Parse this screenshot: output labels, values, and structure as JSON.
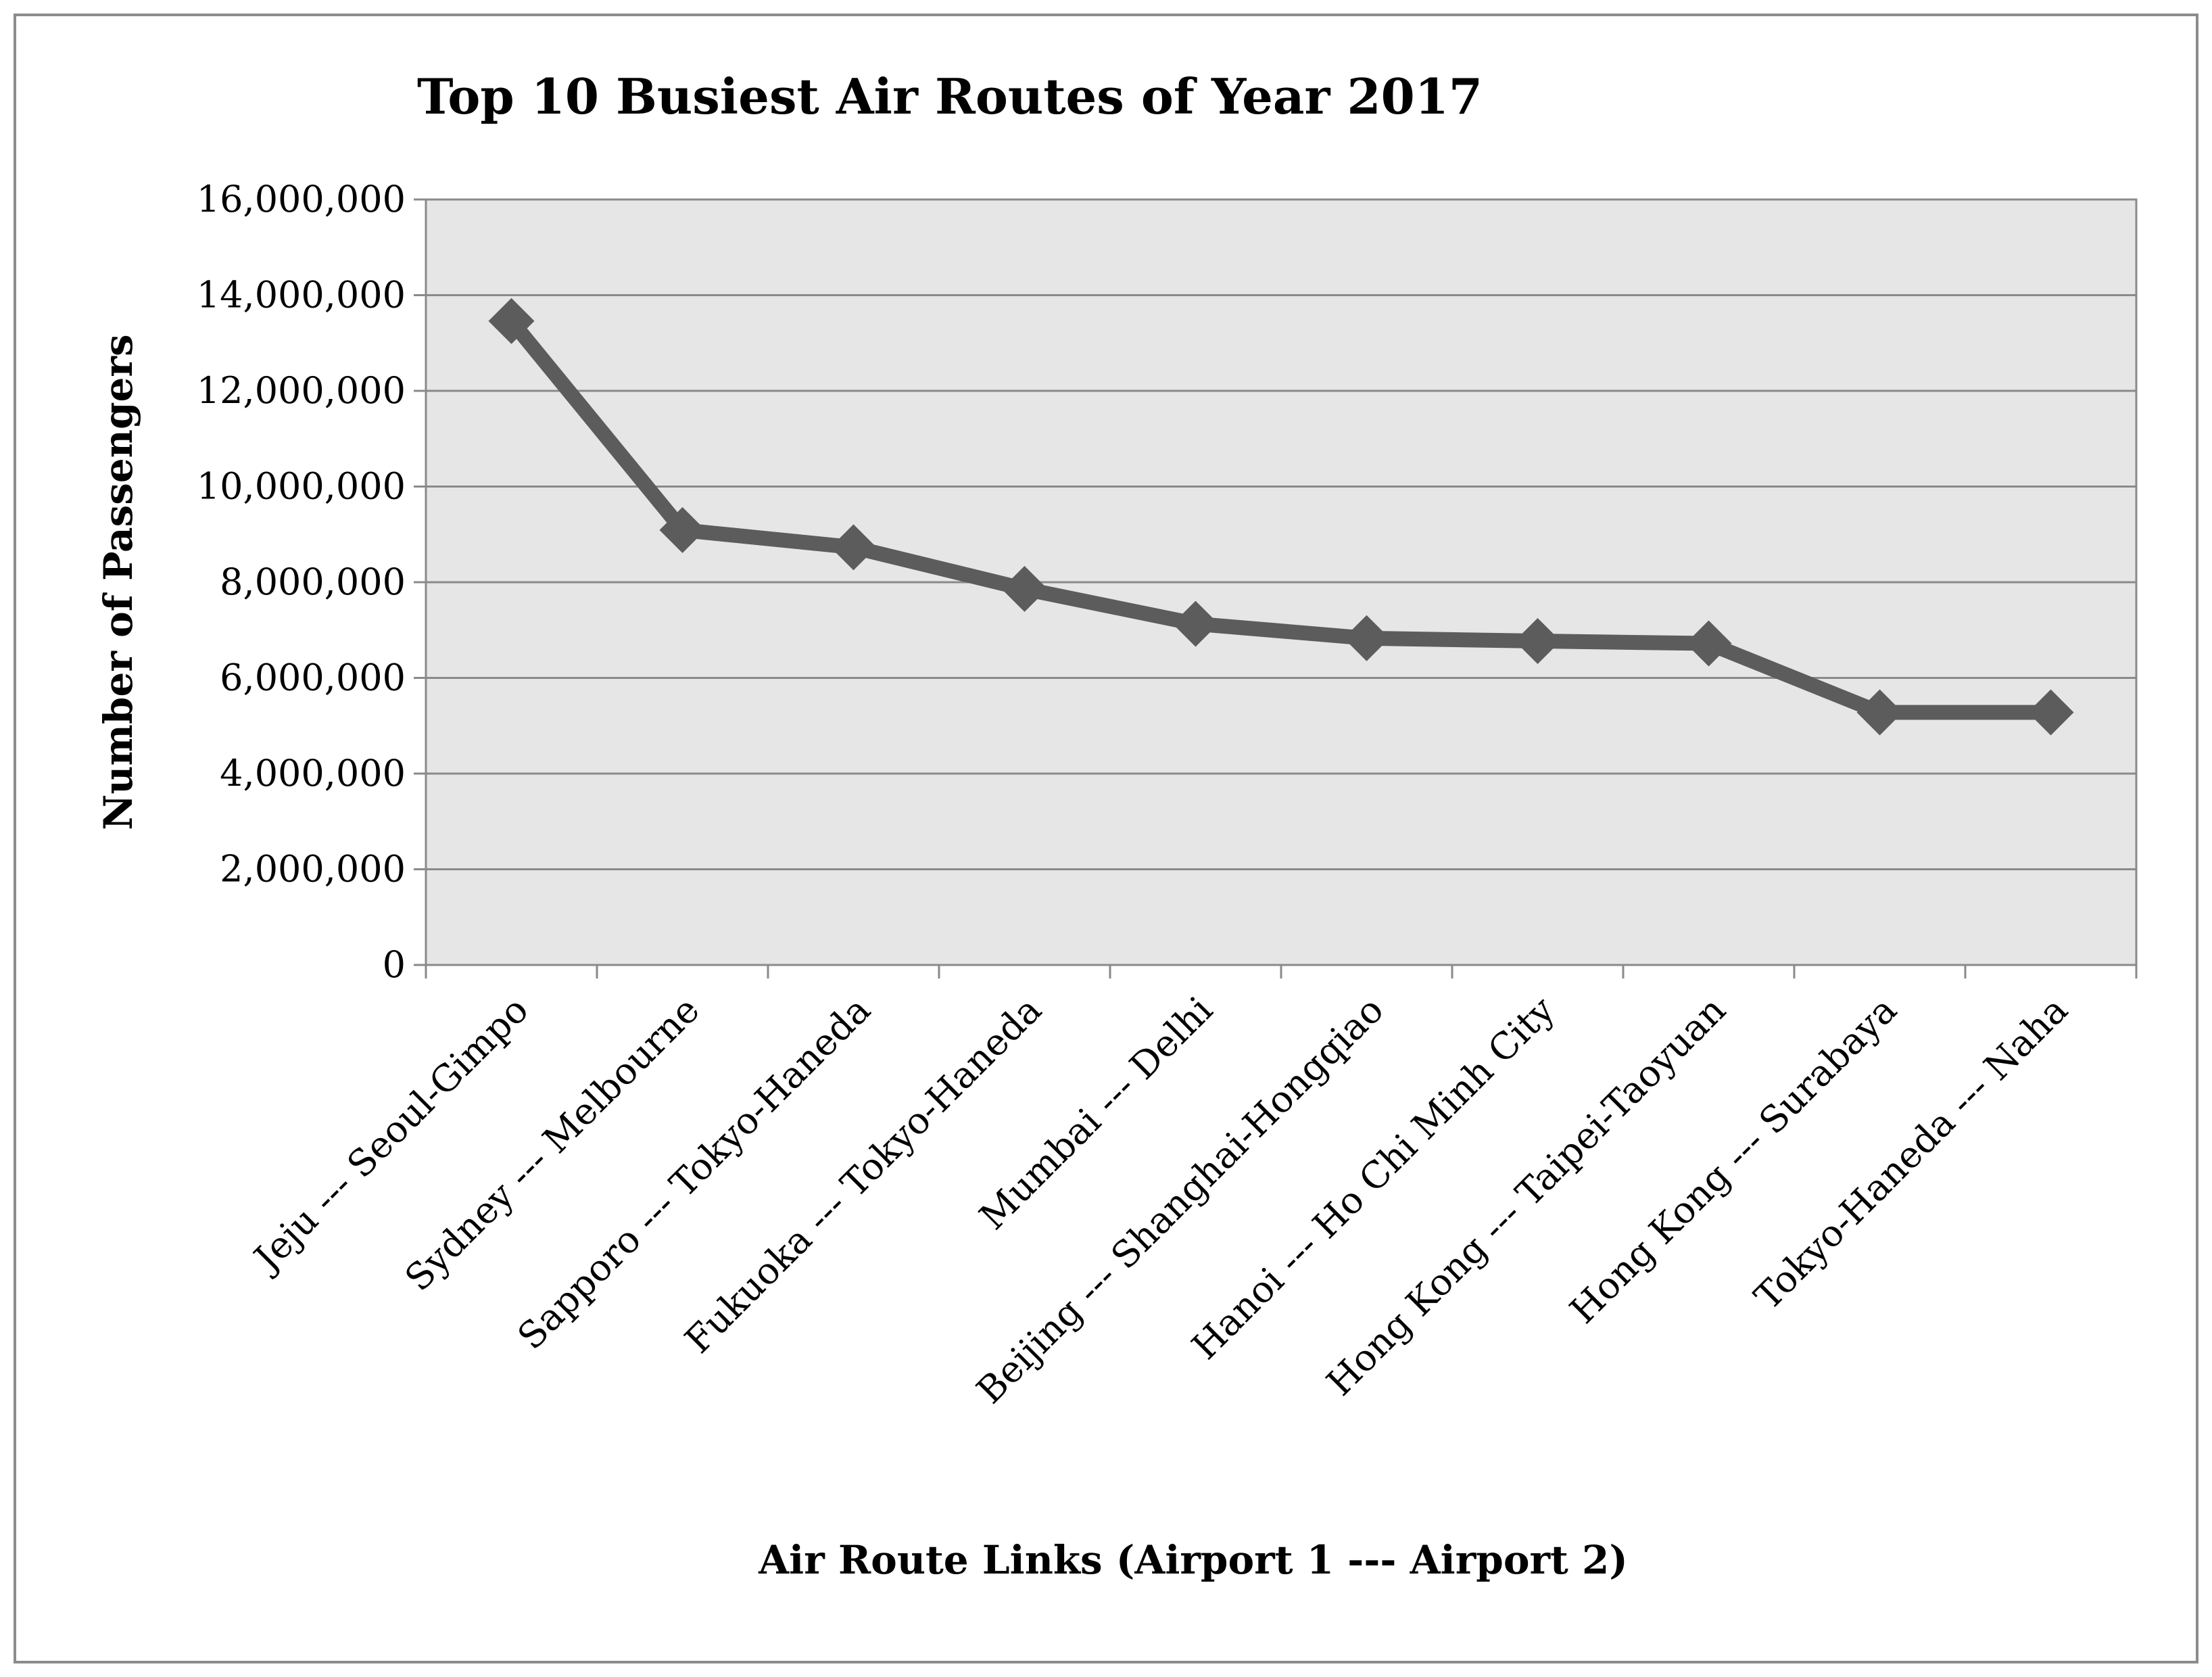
{
  "chart_data": {
    "type": "line",
    "title": "Top 10 Busiest Air Routes of Year 2017",
    "xlabel": "Air Route Links  (Airport 1 --- Airport 2)",
    "ylabel": "Number of Passengers",
    "categories": [
      "Jeju --- Seoul-Gimpo",
      "Sydney --- Melbourne",
      "Sapporo --- Tokyo-Haneda",
      "Fukuoka --- Tokyo-Haneda",
      "Mumbai --- Delhi",
      "Beijing --- Shanghai-Hongqiao",
      "Hanoi --- Ho Chi Minh City",
      "Hong Kong --- Taipei-Taoyuan",
      "Hong Kong --- Surabaya",
      "Tokyo-Haneda --- Naha"
    ],
    "series": [
      {
        "values": [
          13460000,
          9090000,
          8730000,
          7860000,
          7130000,
          6830000,
          6770000,
          6720000,
          5280000,
          5280000
        ]
      }
    ],
    "ylim": [
      0,
      16000000
    ],
    "yticks": [
      0,
      2000000,
      4000000,
      6000000,
      8000000,
      10000000,
      12000000,
      14000000,
      16000000
    ],
    "ytick_labels": [
      "0",
      "2,000,000",
      "4,000,000",
      "6,000,000",
      "8,000,000",
      "10,000,000",
      "12,000,000",
      "14,000,000",
      "16,000,000"
    ],
    "grid": true,
    "legend": "none",
    "colors": {
      "plot_background": "#e6e6e6",
      "line": "#5c5c5c",
      "marker": "#5c5c5c",
      "gridline": "#8a8a8a",
      "frame": "#8c8c8c"
    }
  }
}
